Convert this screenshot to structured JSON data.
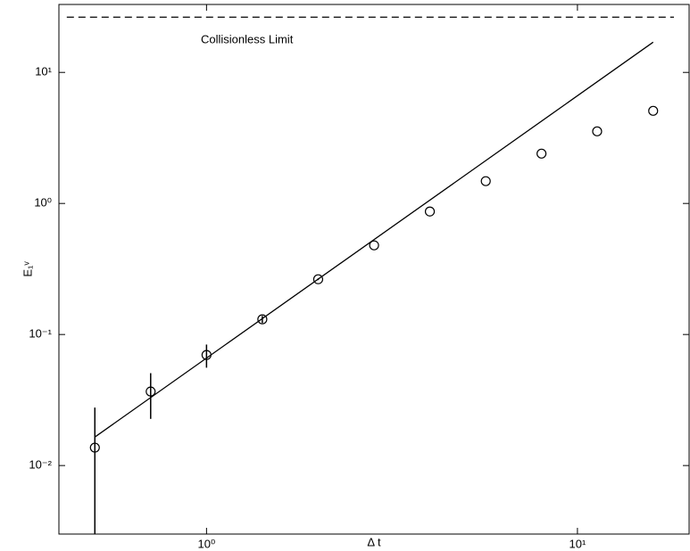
{
  "chart_data": {
    "type": "scatter",
    "xlabel": "Δ t",
    "ylabel": "E₁ᵛ",
    "annotations": [
      "Collisionless Limit"
    ],
    "xlog": true,
    "ylog": true,
    "xlim": [
      0.4,
      20
    ],
    "ylim": [
      0.003,
      33
    ],
    "xticks": [
      {
        "value": 1,
        "label": "10⁰"
      },
      {
        "value": 10,
        "label": "10¹"
      }
    ],
    "yticks": [
      {
        "value": 0.01,
        "label": "10⁻²"
      },
      {
        "value": 0.1,
        "label": "10⁻¹"
      },
      {
        "value": 1,
        "label": "10⁰"
      },
      {
        "value": 10,
        "label": "10¹"
      }
    ],
    "series": [
      {
        "type": "scatter",
        "color": "#000000",
        "x": [
          0.5,
          0.707,
          1,
          1.414,
          2,
          2.83,
          4,
          5.66,
          8,
          11.3,
          16
        ],
        "values": [
          0.0137,
          0.0367,
          0.0698,
          0.1306,
          0.264,
          0.479,
          0.868,
          1.48,
          2.4,
          3.55,
          5.09
        ],
        "errors": [
          0.014,
          0.014,
          0.014,
          0.008,
          0.004,
          0,
          0,
          0,
          0,
          0,
          0
        ]
      },
      {
        "type": "line",
        "color": "#000000",
        "x": [
          0.5,
          16
        ],
        "values": [
          0.0165,
          17
        ]
      },
      {
        "type": "line",
        "color": "#000000",
        "dash": true,
        "x": [
          0.42,
          18.2
        ],
        "values": [
          26.4,
          26.4
        ]
      }
    ]
  }
}
